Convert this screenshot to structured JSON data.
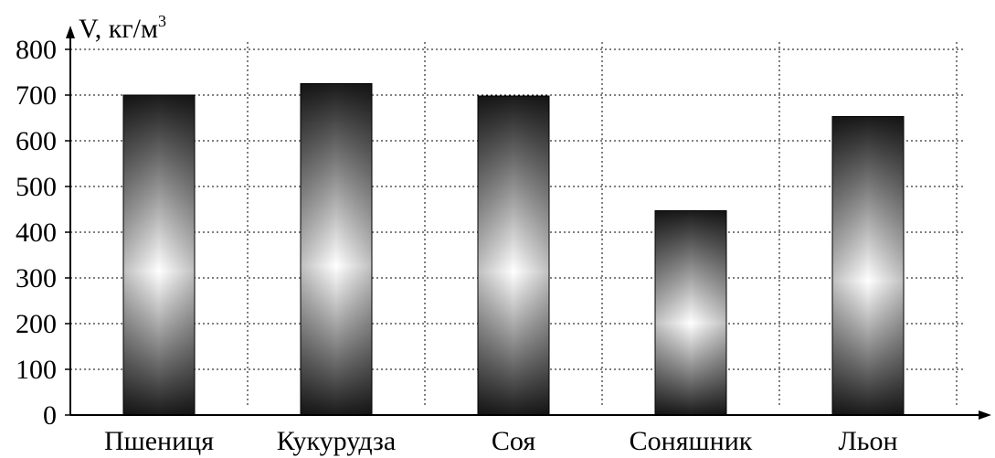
{
  "chart_data": {
    "type": "bar",
    "ylabel": "V, кг/м",
    "ylabel_superscript": "3",
    "categories": [
      "Пшениця",
      "Кукурудза",
      "Соя",
      "Соняшник",
      "Льон"
    ],
    "values": [
      700,
      725,
      698,
      447,
      653
    ],
    "ylim": [
      0,
      800
    ],
    "yticks": [
      "0",
      "100",
      "200",
      "300",
      "400",
      "500",
      "600",
      "700",
      "800"
    ],
    "grid": true,
    "bar_fill": "metallic gradient",
    "colors": {
      "bar_dark": "#1a1a1a",
      "bar_light": "#ffffff",
      "grid": "#000000"
    }
  }
}
